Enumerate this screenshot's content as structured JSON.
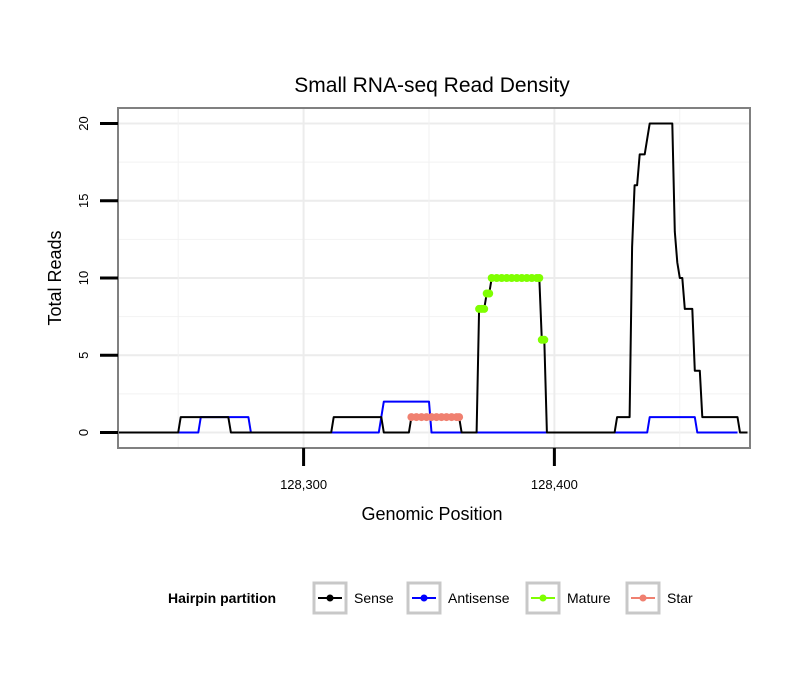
{
  "chart_data": {
    "type": "line",
    "title": "Small RNA-seq Read Density",
    "xlabel": "Genomic Position",
    "ylabel": "Total Reads",
    "xlim": [
      128226,
      128478
    ],
    "ylim": [
      -1,
      21
    ],
    "x_ticks": [
      128300,
      128400
    ],
    "x_tick_labels": [
      "128,300",
      "128,400"
    ],
    "y_ticks": [
      0,
      5,
      10,
      15,
      20
    ],
    "y_tick_labels": [
      "0",
      "5",
      "10",
      "15",
      "20"
    ],
    "grid": true,
    "legend": {
      "title": "Hairpin partition",
      "position": "bottom",
      "entries": [
        "Sense",
        "Antisense",
        "Mature",
        "Star"
      ]
    },
    "series": [
      {
        "name": "Sense",
        "color": "#000000",
        "style": "line",
        "points": [
          [
            128226,
            0
          ],
          [
            128250,
            0
          ],
          [
            128251,
            1
          ],
          [
            128270,
            1
          ],
          [
            128271,
            0
          ],
          [
            128311,
            0
          ],
          [
            128312,
            1
          ],
          [
            128331,
            1
          ],
          [
            128332,
            0
          ],
          [
            128342,
            0
          ],
          [
            128343,
            1
          ],
          [
            128362,
            1
          ],
          [
            128363,
            0
          ],
          [
            128369,
            0
          ],
          [
            128370,
            8
          ],
          [
            128372,
            8
          ],
          [
            128373,
            9
          ],
          [
            128374,
            9
          ],
          [
            128375,
            10
          ],
          [
            128394,
            10
          ],
          [
            128395,
            6
          ],
          [
            128396,
            6
          ],
          [
            128397,
            0
          ],
          [
            128424,
            0
          ],
          [
            128425,
            1
          ],
          [
            128430,
            1
          ],
          [
            128431,
            12
          ],
          [
            128432,
            16
          ],
          [
            128433,
            16
          ],
          [
            128434,
            18
          ],
          [
            128436,
            18
          ],
          [
            128437,
            19
          ],
          [
            128438,
            20
          ],
          [
            128447,
            20
          ],
          [
            128448,
            13
          ],
          [
            128449,
            11
          ],
          [
            128450,
            10
          ],
          [
            128451,
            10
          ],
          [
            128452,
            8
          ],
          [
            128455,
            8
          ],
          [
            128456,
            4
          ],
          [
            128458,
            4
          ],
          [
            128459,
            1
          ],
          [
            128473,
            1
          ],
          [
            128474,
            0
          ],
          [
            128477,
            0
          ]
        ]
      },
      {
        "name": "Antisense",
        "color": "#0000ff",
        "style": "line",
        "points": [
          [
            128226,
            0
          ],
          [
            128258,
            0
          ],
          [
            128259,
            1
          ],
          [
            128278,
            1
          ],
          [
            128279,
            0
          ],
          [
            128330,
            0
          ],
          [
            128331,
            1
          ],
          [
            128332,
            2
          ],
          [
            128350,
            2
          ],
          [
            128351,
            0
          ],
          [
            128437,
            0
          ],
          [
            128438,
            1
          ],
          [
            128456,
            1
          ],
          [
            128457,
            0
          ],
          [
            128473,
            0
          ]
        ]
      },
      {
        "name": "Mature",
        "color": "#7fff00",
        "style": "dots",
        "points": [
          [
            128370,
            8
          ],
          [
            128371,
            8
          ],
          [
            128372,
            8
          ],
          [
            128373,
            9
          ],
          [
            128374,
            9
          ],
          [
            128375,
            10
          ],
          [
            128377,
            10
          ],
          [
            128379,
            10
          ],
          [
            128381,
            10
          ],
          [
            128383,
            10
          ],
          [
            128385,
            10
          ],
          [
            128387,
            10
          ],
          [
            128389,
            10
          ],
          [
            128391,
            10
          ],
          [
            128393,
            10
          ],
          [
            128394,
            10
          ],
          [
            128395,
            6
          ],
          [
            128396,
            6
          ]
        ]
      },
      {
        "name": "Star",
        "color": "#f08070",
        "style": "dots",
        "points": [
          [
            128343,
            1
          ],
          [
            128345,
            1
          ],
          [
            128347,
            1
          ],
          [
            128349,
            1
          ],
          [
            128351,
            1
          ],
          [
            128353,
            1
          ],
          [
            128355,
            1
          ],
          [
            128357,
            1
          ],
          [
            128359,
            1
          ],
          [
            128361,
            1
          ],
          [
            128362,
            1
          ]
        ]
      }
    ]
  }
}
